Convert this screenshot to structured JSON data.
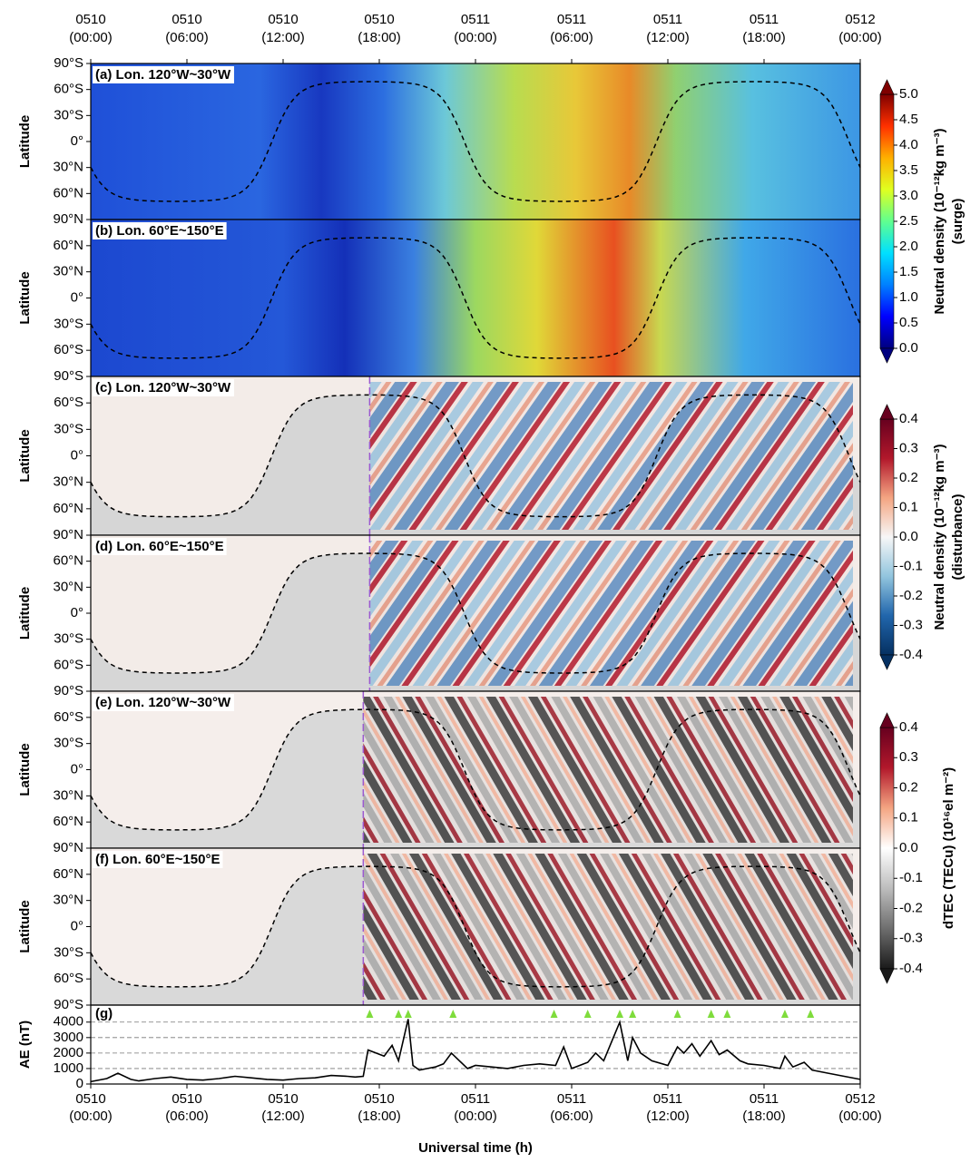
{
  "chart_data": [
    {
      "type": "heatmap",
      "label": "(a) Lon. 120°W~30°W",
      "field": "surge",
      "xlim": [
        0,
        48
      ],
      "xticks": [
        {
          "value": 0,
          "label": "0510",
          "sublabel": "(00:00)"
        },
        {
          "value": 6,
          "label": "0510",
          "sublabel": "(06:00)"
        },
        {
          "value": 12,
          "label": "0510",
          "sublabel": "(12:00)"
        },
        {
          "value": 18,
          "label": "0510",
          "sublabel": "(18:00)"
        },
        {
          "value": 24,
          "label": "0511",
          "sublabel": "(00:00)"
        },
        {
          "value": 30,
          "label": "0511",
          "sublabel": "(06:00)"
        },
        {
          "value": 36,
          "label": "0511",
          "sublabel": "(12:00)"
        },
        {
          "value": 42,
          "label": "0511",
          "sublabel": "(18:00)"
        },
        {
          "value": 48,
          "label": "0512",
          "sublabel": "(00:00)"
        }
      ],
      "ylabel": "Latitude",
      "ylim": [
        90,
        -90
      ],
      "yticks": [
        {
          "value": -90,
          "label": "90°S"
        },
        {
          "value": -60,
          "label": "60°S"
        },
        {
          "value": -30,
          "label": "30°S"
        },
        {
          "value": 0,
          "label": "0°"
        },
        {
          "value": 30,
          "label": "30°N"
        },
        {
          "value": 60,
          "label": "60°N"
        },
        {
          "value": 90,
          "label": "90°N"
        }
      ],
      "colorbar": {
        "label": "Neutral density (10⁻¹²kg m⁻³)",
        "sublabel": "(surge)",
        "lim": [
          0,
          5
        ],
        "ticks": [
          {
            "value": 0,
            "label": "0.0"
          },
          0.5,
          {
            "value": 1,
            "label": "1.0"
          },
          1.5,
          {
            "value": 2,
            "label": "2.0"
          },
          2.5,
          {
            "value": 3,
            "label": "3.0"
          },
          3.5,
          {
            "value": 4,
            "label": "4.0"
          },
          4.5,
          {
            "value": 5,
            "label": "5.0"
          }
        ],
        "colors": [
          "#00007f",
          "#0000ff",
          "#0080ff",
          "#00e0ff",
          "#60ff90",
          "#e0ff20",
          "#ffb000",
          "#ff3000",
          "#7f0000"
        ]
      }
    },
    {
      "type": "heatmap",
      "label": "(b) Lon. 60°E~150°E",
      "field": "surge",
      "ylabel": "Latitude",
      "ylim": [
        -90,
        90
      ],
      "yticks": [
        {
          "value": 60,
          "label": "60°N"
        },
        {
          "value": 30,
          "label": "30°N"
        },
        {
          "value": 0,
          "label": "0°"
        },
        {
          "value": -30,
          "label": "30°S"
        },
        {
          "value": -60,
          "label": "60°S"
        },
        {
          "value": -90,
          "label": "90°S"
        }
      ]
    },
    {
      "type": "heatmap",
      "label": "(c) Lon. 120°W~30°W",
      "field": "disturbance",
      "onset": 17.4,
      "ylabel": "Latitude",
      "ylim": [
        90,
        -90
      ],
      "yticks": [
        {
          "value": -60,
          "label": "60°S"
        },
        {
          "value": -30,
          "label": "30°S"
        },
        {
          "value": 0,
          "label": "0°"
        },
        {
          "value": 30,
          "label": "30°N"
        },
        {
          "value": 60,
          "label": "60°N"
        },
        {
          "value": 90,
          "label": "90°N"
        }
      ],
      "colorbar": {
        "label": "Neutral density (10⁻¹²kg m⁻³)",
        "sublabel": "(disturbance)",
        "lim": [
          -0.4,
          0.4
        ],
        "ticks": [
          -0.4,
          -0.3,
          -0.2,
          -0.1,
          {
            "value": 0,
            "label": "0.0"
          },
          0.1,
          0.2,
          0.3,
          0.4
        ],
        "colors": [
          "#053061",
          "#2166ac",
          "#92c5de",
          "#f7f7f7",
          "#f4a582",
          "#b2182b",
          "#67001f"
        ]
      }
    },
    {
      "type": "heatmap",
      "label": "(d) Lon. 60°E~150°E",
      "field": "disturbance",
      "onset": 17.4,
      "ylabel": "Latitude",
      "ylim": [
        -90,
        90
      ],
      "yticks": [
        {
          "value": 60,
          "label": "60°N"
        },
        {
          "value": 30,
          "label": "30°N"
        },
        {
          "value": 0,
          "label": "0°"
        },
        {
          "value": -30,
          "label": "30°S"
        },
        {
          "value": -60,
          "label": "60°S"
        },
        {
          "value": -90,
          "label": "90°S"
        }
      ]
    },
    {
      "type": "heatmap",
      "label": "(e) Lon. 120°W~30°W",
      "field": "tec",
      "onset": 17.0,
      "ylabel": "Latitude",
      "ylim": [
        90,
        -90
      ],
      "yticks": [
        {
          "value": -60,
          "label": "60°S"
        },
        {
          "value": -30,
          "label": "30°S"
        },
        {
          "value": 0,
          "label": "0°"
        },
        {
          "value": 30,
          "label": "30°N"
        },
        {
          "value": 60,
          "label": "60°N"
        },
        {
          "value": 90,
          "label": "90°N"
        }
      ],
      "colorbar": {
        "label": "dTEC (TECu) (10¹⁶el m⁻²)",
        "lim": [
          -0.4,
          0.4
        ],
        "ticks": [
          -0.4,
          -0.3,
          -0.2,
          -0.1,
          {
            "value": 0,
            "label": "0.0"
          },
          0.1,
          0.2,
          0.3,
          0.4
        ],
        "colors": [
          "#1a1a1a",
          "#6e6e6e",
          "#bdbdbd",
          "#ffffff",
          "#f4a582",
          "#b2182b",
          "#67001f"
        ]
      }
    },
    {
      "type": "heatmap",
      "label": "(f) Lon. 60°E~150°E",
      "field": "tec",
      "onset": 17.0,
      "ylabel": "Latitude",
      "ylim": [
        -90,
        90
      ],
      "yticks": [
        {
          "value": 60,
          "label": "60°N"
        },
        {
          "value": 30,
          "label": "30°N"
        },
        {
          "value": 0,
          "label": "0°"
        },
        {
          "value": -30,
          "label": "30°S"
        },
        {
          "value": -60,
          "label": "60°S"
        },
        {
          "value": -90,
          "label": "90°S"
        }
      ]
    },
    {
      "type": "line",
      "label": "(g)",
      "xlabel": "Universal time (h)",
      "ylabel": "AE (nT)",
      "color": "#000000",
      "xlim": [
        0,
        48
      ],
      "xticks": [
        {
          "value": 0,
          "label": "0510",
          "sublabel": "(00:00)"
        },
        {
          "value": 6,
          "label": "0510",
          "sublabel": "(06:00)"
        },
        {
          "value": 12,
          "label": "0510",
          "sublabel": "(12:00)"
        },
        {
          "value": 18,
          "label": "0510",
          "sublabel": "(18:00)"
        },
        {
          "value": 24,
          "label": "0511",
          "sublabel": "(00:00)"
        },
        {
          "value": 30,
          "label": "0511",
          "sublabel": "(06:00)"
        },
        {
          "value": 36,
          "label": "0511",
          "sublabel": "(12:00)"
        },
        {
          "value": 42,
          "label": "0511",
          "sublabel": "(18:00)"
        },
        {
          "value": 48,
          "label": "0512",
          "sublabel": "(00:00)"
        }
      ],
      "ylim": [
        0,
        5100
      ],
      "yticks": [
        0,
        1000,
        2000,
        3000,
        4000
      ],
      "grid": true,
      "x": [
        0,
        1,
        1.7,
        2.5,
        3,
        4,
        5,
        6,
        7,
        8,
        9,
        10,
        11,
        12,
        13,
        14,
        15,
        16,
        16.5,
        17,
        17.3,
        17.8,
        18.3,
        18.8,
        19.2,
        19.8,
        20.1,
        20.5,
        21,
        21.5,
        22,
        22.5,
        23,
        23.5,
        24,
        25,
        26,
        27,
        28,
        29,
        29.5,
        30,
        31,
        31.5,
        32,
        33,
        33.5,
        33.8,
        34.3,
        35,
        36,
        36.6,
        37,
        37.5,
        38,
        38.7,
        39.2,
        39.7,
        40.5,
        41,
        42,
        43,
        43.3,
        43.8,
        44.5,
        45,
        46,
        47,
        48
      ],
      "values": [
        150,
        350,
        700,
        300,
        200,
        350,
        450,
        300,
        250,
        350,
        500,
        400,
        300,
        250,
        350,
        400,
        550,
        500,
        450,
        500,
        2200,
        2000,
        1800,
        2500,
        1500,
        4200,
        1200,
        900,
        1000,
        1100,
        1300,
        2000,
        1500,
        1000,
        1200,
        1100,
        1000,
        1200,
        1300,
        1200,
        2400,
        1000,
        1400,
        2000,
        1500,
        4000,
        1500,
        3000,
        2000,
        1500,
        1200,
        2400,
        2000,
        2600,
        1800,
        2800,
        1900,
        2200,
        1500,
        1300,
        1200,
        1000,
        1800,
        1100,
        1400,
        900,
        700,
        500,
        300
      ],
      "markers": [
        17.4,
        19.2,
        19.8,
        22.6,
        28.9,
        31.0,
        33.0,
        33.8,
        36.6,
        38.7,
        39.7,
        43.3,
        44.9
      ],
      "marker_color": "#7fdc3c"
    }
  ]
}
